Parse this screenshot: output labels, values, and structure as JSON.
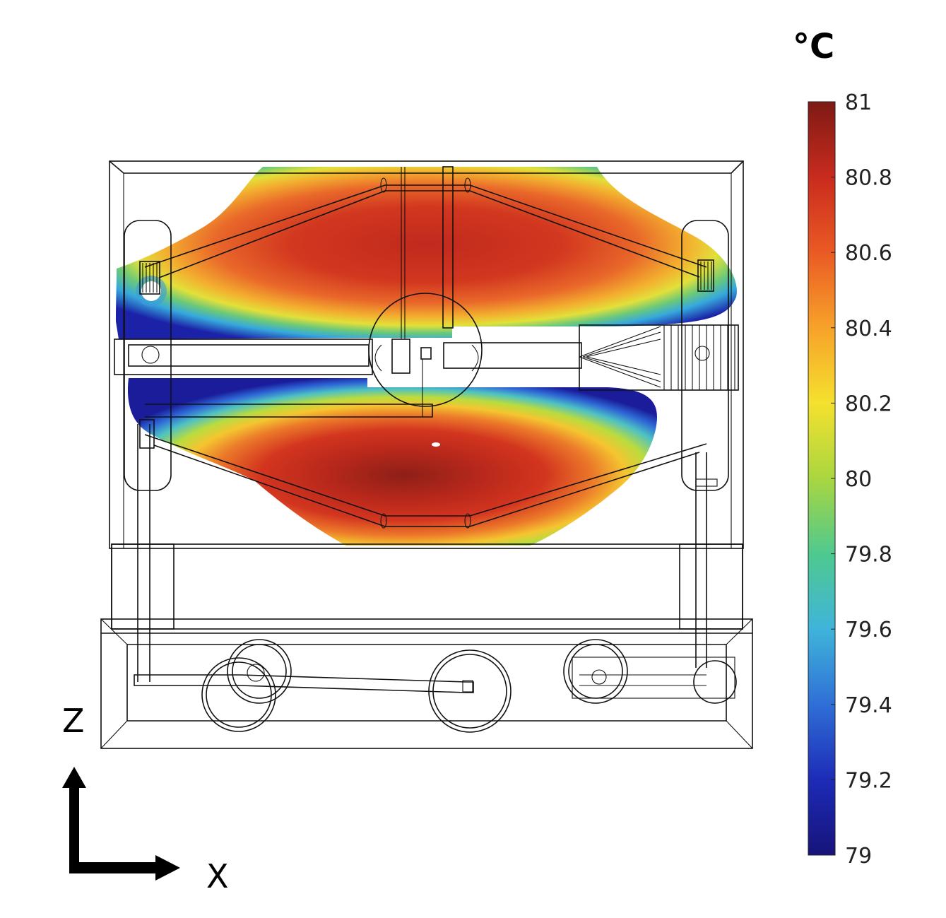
{
  "colorbar": {
    "unit": "°C",
    "min": 79,
    "max": 81,
    "ticks": [
      "81",
      "80.8",
      "80.6",
      "80.4",
      "80.2",
      "80",
      "79.8",
      "79.6",
      "79.4",
      "79.2",
      "79"
    ],
    "colormap": [
      "#17137a",
      "#1d2bb7",
      "#2f6fd6",
      "#3fb4da",
      "#4fc98f",
      "#a9d640",
      "#f5e12e",
      "#f7a22a",
      "#ea5a24",
      "#c92b1e",
      "#7d1a14"
    ]
  },
  "axes": {
    "vertical": "Z",
    "horizontal": "X"
  },
  "field": {
    "hot": "#b2231a",
    "peak": "#7d1a14"
  }
}
